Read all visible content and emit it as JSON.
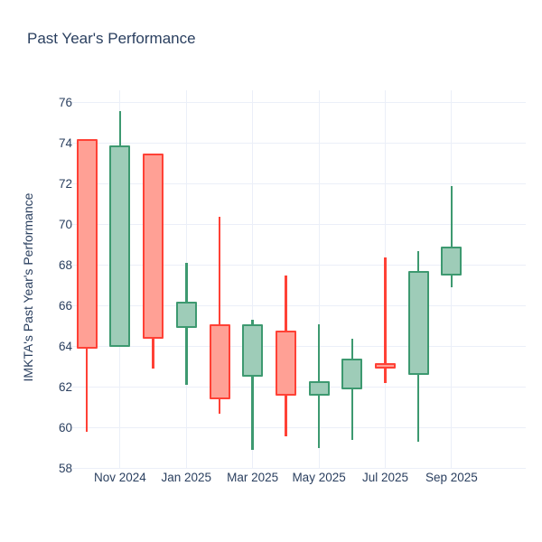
{
  "chart_data": {
    "type": "candlestick",
    "title": "Past Year's Performance",
    "ylabel": "IMKTA's Past Year's Performance",
    "xlabel": "",
    "ylim": [
      57.98,
      76.6
    ],
    "grid": true,
    "legend": false,
    "y_ticks": [
      58,
      60,
      62,
      64,
      66,
      68,
      70,
      72,
      74,
      76
    ],
    "x_ticks": [
      {
        "label": "Nov 2024",
        "index": 1
      },
      {
        "label": "Jan 2025",
        "index": 3
      },
      {
        "label": "Mar 2025",
        "index": 5
      },
      {
        "label": "May 2025",
        "index": 7
      },
      {
        "label": "Jul 2025",
        "index": 9
      },
      {
        "label": "Sep 2025",
        "index": 11
      }
    ],
    "colors": {
      "increasing_line": "#3D9970",
      "increasing_fill": "#9ECCB8",
      "decreasing_line": "#FF4136",
      "decreasing_fill": "#FFA095",
      "grid": "#EBEFF8",
      "text": "#2a3f5f",
      "background": "#ffffff"
    },
    "candles": [
      {
        "period": "Oct 2024",
        "open": 74.2,
        "high": 74.2,
        "low": 59.8,
        "close": 63.9,
        "direction": "down"
      },
      {
        "period": "Nov 2024",
        "open": 64.0,
        "high": 75.6,
        "low": 64.0,
        "close": 73.9,
        "direction": "up"
      },
      {
        "period": "Dec 2024",
        "open": 73.5,
        "high": 73.5,
        "low": 62.9,
        "close": 64.4,
        "direction": "down"
      },
      {
        "period": "Jan 2025",
        "open": 64.9,
        "high": 68.1,
        "low": 62.1,
        "close": 66.2,
        "direction": "up"
      },
      {
        "period": "Feb 2025",
        "open": 65.1,
        "high": 70.4,
        "low": 60.7,
        "close": 61.4,
        "direction": "down"
      },
      {
        "period": "Mar 2025",
        "open": 62.5,
        "high": 65.3,
        "low": 58.9,
        "close": 65.1,
        "direction": "up"
      },
      {
        "period": "Apr 2025",
        "open": 64.8,
        "high": 67.5,
        "low": 59.6,
        "close": 61.6,
        "direction": "down"
      },
      {
        "period": "May 2025",
        "open": 61.6,
        "high": 65.1,
        "low": 59.0,
        "close": 62.3,
        "direction": "up"
      },
      {
        "period": "Jun 2025",
        "open": 61.9,
        "high": 64.4,
        "low": 59.4,
        "close": 63.4,
        "direction": "up"
      },
      {
        "period": "Jul 2025",
        "open": 63.2,
        "high": 68.4,
        "low": 62.2,
        "close": 62.9,
        "direction": "down"
      },
      {
        "period": "Aug 2025",
        "open": 62.6,
        "high": 68.7,
        "low": 59.3,
        "close": 67.7,
        "direction": "up"
      },
      {
        "period": "Sep 2025",
        "open": 67.5,
        "high": 71.9,
        "low": 66.9,
        "close": 68.9,
        "direction": "up"
      }
    ]
  }
}
